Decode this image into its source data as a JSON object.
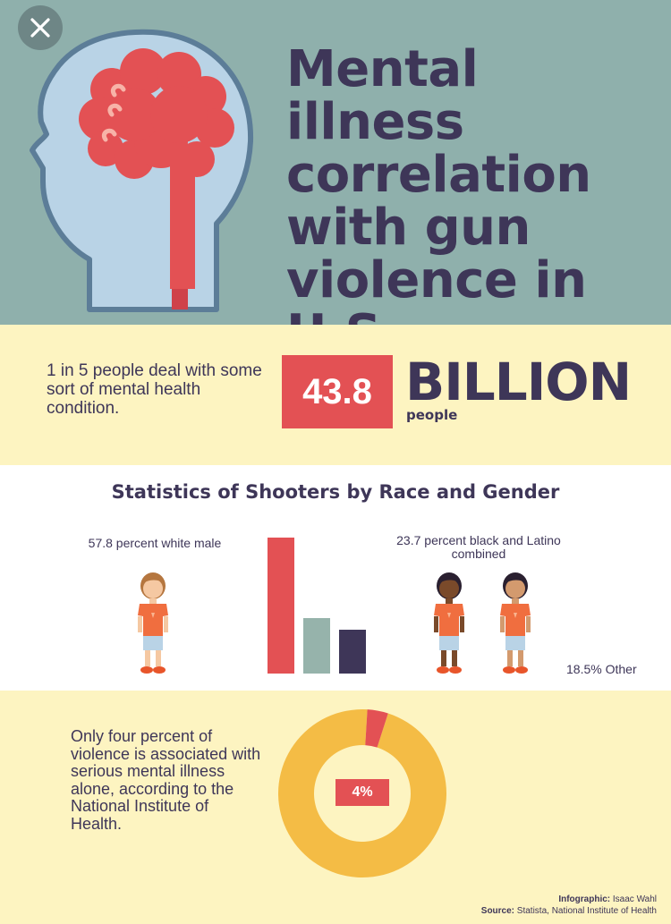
{
  "header": {
    "title": "Mental illness correlation with gun violence in U.S.",
    "close_icon": "close-icon",
    "head_icon": "head-brain-icon"
  },
  "stat1": {
    "text": "1 in 5 people deal with some sort of mental health condition.",
    "number": "43.8",
    "unit": "BILLION",
    "unit_sub": "people"
  },
  "shooters": {
    "title": "Statistics of Shooters by Race and Gender",
    "white_label": "57.8 percent white male",
    "black_label": "23.7 percent black and Latino combined",
    "other_label": "18.5% Other"
  },
  "chart_data": {
    "type": "bar",
    "categories": [
      "white male",
      "black and Latino combined",
      "Other"
    ],
    "values": [
      57.8,
      23.7,
      18.5
    ],
    "colors": [
      "#e35154",
      "#96b3ab",
      "#3e3658"
    ],
    "title": "Statistics of Shooters by Race and Gender"
  },
  "stat2": {
    "text": "Only four percent of violence is associated with serious mental illness alone, according to the National Institute of Health.",
    "percent_label": "4%",
    "percent_value": 4,
    "colors": {
      "main": "#f4bc45",
      "highlight": "#e35154"
    }
  },
  "credits": {
    "infographic_label": "Infographic:",
    "infographic_value": "Isaac Wahl",
    "source_label": "Source:",
    "source_value": "Statista, National Institute of Health"
  },
  "colors": {
    "teal": "#8fb0ac",
    "navy": "#3e3658",
    "red": "#e35154",
    "cream": "#fdf4c1",
    "yellow": "#f4bc45"
  }
}
